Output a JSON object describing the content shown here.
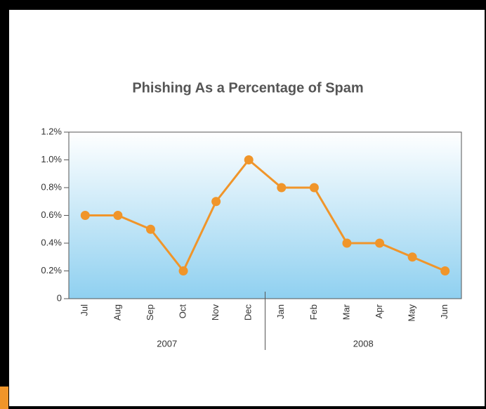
{
  "chart_data": {
    "type": "line",
    "title": "Phishing As a Percentage of Spam",
    "categories": [
      "Jul",
      "Aug",
      "Sep",
      "Oct",
      "Nov",
      "Dec",
      "Jan",
      "Feb",
      "Mar",
      "Apr",
      "May",
      "Jun"
    ],
    "group_labels": [
      "2007",
      "2008"
    ],
    "series": [
      {
        "name": "Phishing",
        "color": "#f0952a",
        "values": [
          0.6,
          0.6,
          0.5,
          0.2,
          0.7,
          1.0,
          0.8,
          0.8,
          0.4,
          0.4,
          0.3,
          0.2
        ]
      }
    ],
    "ylim": [
      0,
      1.2
    ],
    "yticks": [
      0,
      {
        "value": 0.2,
        "label": "0.2%"
      },
      {
        "value": 0.4,
        "label": "0.4%"
      },
      {
        "value": 0.6,
        "label": "0.6%"
      },
      {
        "value": 0.8,
        "label": "0.8%"
      },
      {
        "value": 1.0,
        "label": "1.0%"
      },
      {
        "value": 1.2,
        "label": "1.2%"
      }
    ]
  }
}
